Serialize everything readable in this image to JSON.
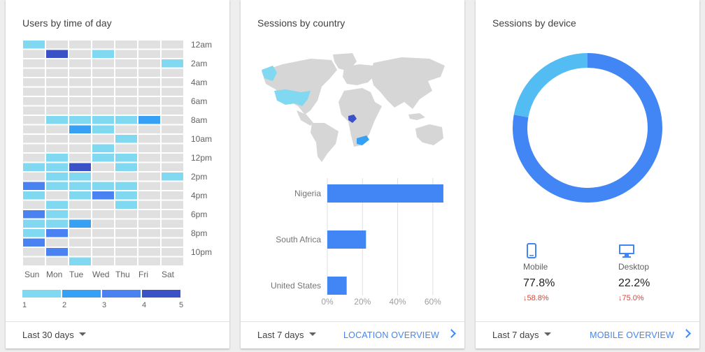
{
  "heatmap_card": {
    "title": "Users by time of day",
    "range_label": "Last 30 days"
  },
  "country_card": {
    "title": "Sessions by country",
    "range_label": "Last 7 days",
    "overview_link": "LOCATION OVERVIEW"
  },
  "device_card": {
    "title": "Sessions by device",
    "range_label": "Last 7 days",
    "overview_link": "MOBILE OVERVIEW",
    "devices": [
      {
        "label": "Mobile",
        "value": "77.8%",
        "change": "↓58.8%",
        "icon": "smartphone-icon"
      },
      {
        "label": "Desktop",
        "value": "22.2%",
        "change": "↓75.0%",
        "icon": "desktop-icon"
      }
    ]
  },
  "colors": {
    "empty": "#e0e0e0",
    "level1": "#80d8f1",
    "level2": "#35a0f4",
    "level3": "#4a82f2",
    "level4": "#3a52c6",
    "bar": "#4285f4",
    "donut_mobile": "#4285f4",
    "donut_desktop": "#52bcf3",
    "map_land": "#d6d6d6",
    "map_usa": "#80d8f1",
    "map_nigeria": "#3a52c6",
    "map_south_africa": "#35a0f4"
  },
  "chart_data": [
    {
      "type": "heatmap",
      "title": "Users by time of day",
      "x_categories": [
        "Sun",
        "Mon",
        "Tue",
        "Wed",
        "Thu",
        "Fri",
        "Sat"
      ],
      "y_categories": [
        "12am",
        "1am",
        "2am",
        "3am",
        "4am",
        "5am",
        "6am",
        "7am",
        "8am",
        "9am",
        "10am",
        "11am",
        "12pm",
        "1pm",
        "2pm",
        "3pm",
        "4pm",
        "5pm",
        "6pm",
        "7pm",
        "8pm",
        "9pm",
        "10pm",
        "11pm"
      ],
      "y_tick_labels": [
        "12am",
        "2am",
        "4am",
        "6am",
        "8am",
        "10am",
        "12pm",
        "2pm",
        "4pm",
        "6pm",
        "8pm",
        "10pm"
      ],
      "values": [
        [
          1,
          0,
          0,
          0,
          0,
          0,
          0
        ],
        [
          0,
          4,
          0,
          1,
          0,
          0,
          0
        ],
        [
          0,
          0,
          0,
          0,
          0,
          0,
          1
        ],
        [
          0,
          0,
          0,
          0,
          0,
          0,
          0
        ],
        [
          0,
          0,
          0,
          0,
          0,
          0,
          0
        ],
        [
          0,
          0,
          0,
          0,
          0,
          0,
          0
        ],
        [
          0,
          0,
          0,
          0,
          0,
          0,
          0
        ],
        [
          0,
          0,
          0,
          0,
          0,
          0,
          0
        ],
        [
          0,
          1,
          1,
          1,
          1,
          2,
          0
        ],
        [
          0,
          0,
          2,
          1,
          0,
          0,
          0
        ],
        [
          0,
          0,
          0,
          0,
          1,
          0,
          0
        ],
        [
          0,
          0,
          0,
          1,
          0,
          0,
          0
        ],
        [
          0,
          1,
          0,
          1,
          1,
          0,
          0
        ],
        [
          1,
          1,
          4,
          0,
          1,
          0,
          0
        ],
        [
          0,
          1,
          1,
          0,
          0,
          0,
          1
        ],
        [
          3,
          1,
          1,
          1,
          1,
          0,
          0
        ],
        [
          1,
          0,
          1,
          3,
          1,
          0,
          0
        ],
        [
          0,
          1,
          0,
          0,
          1,
          0,
          0
        ],
        [
          3,
          1,
          0,
          0,
          0,
          0,
          0
        ],
        [
          1,
          1,
          2,
          0,
          0,
          0,
          0
        ],
        [
          1,
          3,
          0,
          0,
          0,
          0,
          0
        ],
        [
          3,
          0,
          0,
          0,
          0,
          0,
          0
        ],
        [
          0,
          3,
          0,
          0,
          0,
          0,
          0
        ],
        [
          0,
          0,
          1,
          0,
          0,
          0,
          0
        ]
      ],
      "legend": [
        "1",
        "2",
        "3",
        "4",
        "5"
      ]
    },
    {
      "type": "bar",
      "orientation": "horizontal",
      "title": "Sessions by country",
      "categories": [
        "Nigeria",
        "South Africa",
        "United States"
      ],
      "values": [
        66,
        22,
        11
      ],
      "x_ticks": [
        "0%",
        "20%",
        "40%",
        "60%"
      ],
      "xlim": [
        0,
        70
      ]
    },
    {
      "type": "pie",
      "title": "Sessions by device",
      "labels": [
        "Mobile",
        "Desktop"
      ],
      "values": [
        77.8,
        22.2
      ]
    }
  ]
}
